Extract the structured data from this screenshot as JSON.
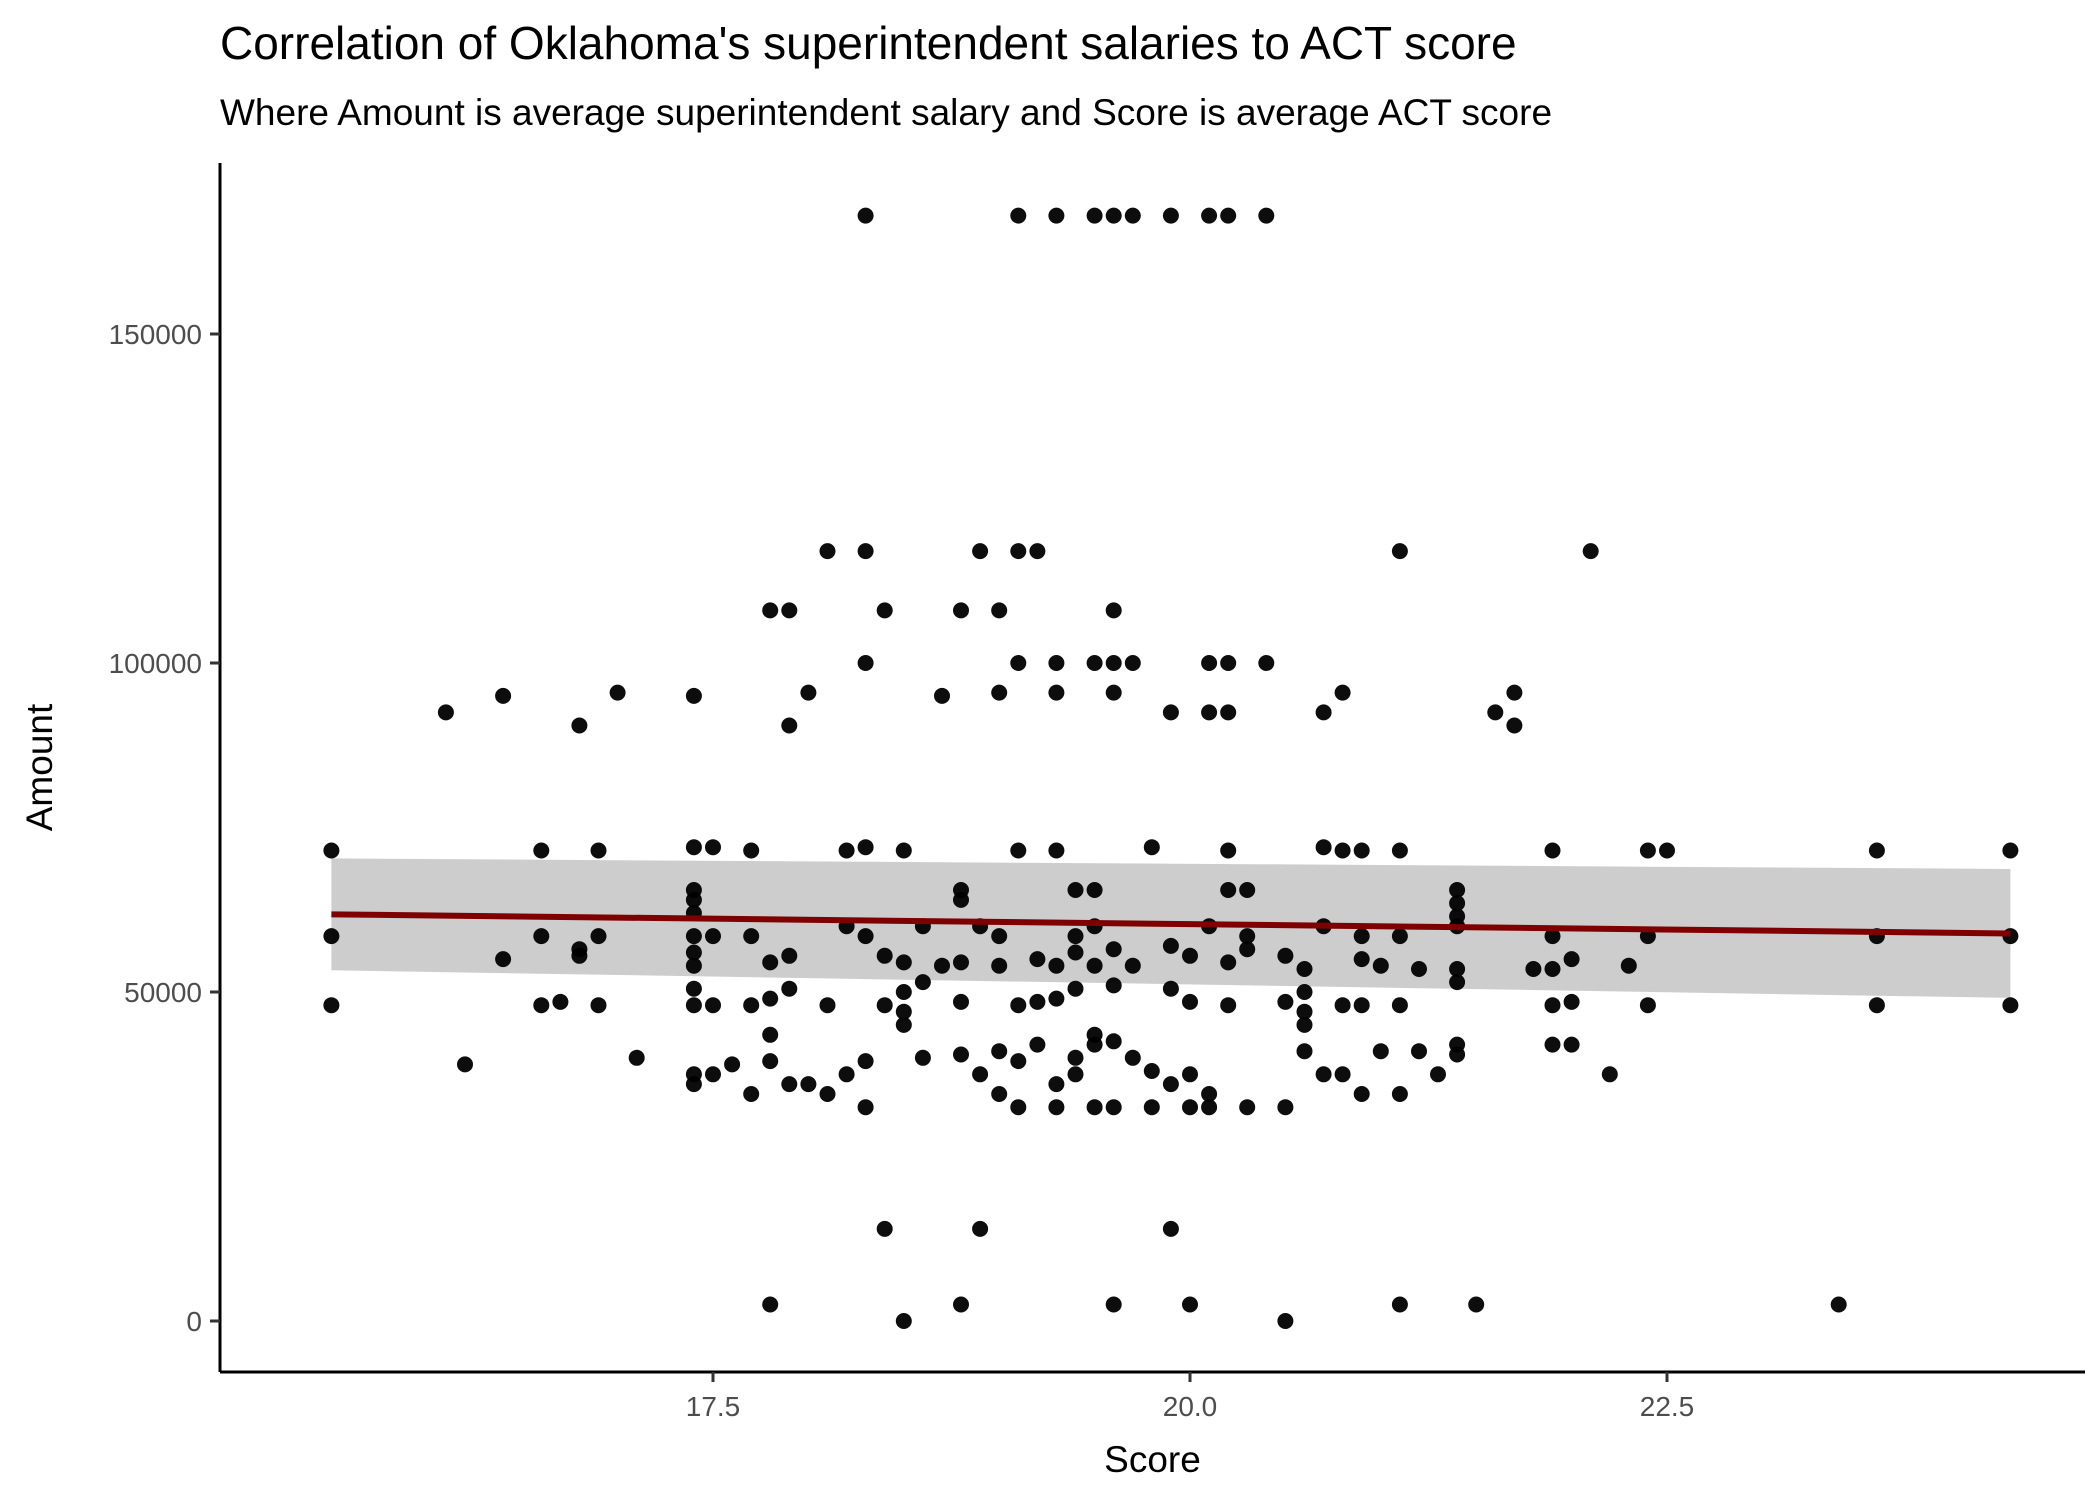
{
  "chart_data": {
    "type": "scatter",
    "title": "Correlation of Oklahoma's superintendent salaries to ACT score",
    "subtitle": "Where Amount is average superintendent salary and Score is average ACT score",
    "xlabel": "Score",
    "ylabel": "Amount",
    "xlim": [
      15.4,
      24.6
    ],
    "ylim": [
      -7000,
      175000
    ],
    "xticks": [
      17.5,
      20.0,
      22.5
    ],
    "xtick_labels": [
      "17.5",
      "20.0",
      "22.5"
    ],
    "yticks": [
      0,
      50000,
      100000,
      150000
    ],
    "ytick_labels": [
      "0",
      "50000",
      "100000",
      "150000"
    ],
    "grid": false,
    "legend": "none",
    "colors": {
      "points": "#000000",
      "fit_line": "#7f0000",
      "confidence_band": "#c8c8c8"
    },
    "trend": {
      "x": [
        15.5,
        24.3
      ],
      "y": [
        61800,
        58900
      ],
      "ci_upper": [
        70300,
        68700
      ],
      "ci_lower": [
        53300,
        49100
      ]
    },
    "points": [
      [
        18.3,
        168000
      ],
      [
        19.1,
        168000
      ],
      [
        19.3,
        168000
      ],
      [
        19.5,
        168000
      ],
      [
        19.6,
        168000
      ],
      [
        19.7,
        168000
      ],
      [
        19.9,
        168000
      ],
      [
        20.1,
        168000
      ],
      [
        20.2,
        168000
      ],
      [
        20.4,
        168000
      ],
      [
        18.1,
        117000
      ],
      [
        18.3,
        117000
      ],
      [
        18.9,
        117000
      ],
      [
        19.1,
        117000
      ],
      [
        19.2,
        117000
      ],
      [
        21.1,
        117000
      ],
      [
        22.1,
        117000
      ],
      [
        17.8,
        108000
      ],
      [
        17.9,
        108000
      ],
      [
        18.4,
        108000
      ],
      [
        18.8,
        108000
      ],
      [
        19.0,
        108000
      ],
      [
        19.6,
        108000
      ],
      [
        18.3,
        100000
      ],
      [
        19.1,
        100000
      ],
      [
        19.3,
        100000
      ],
      [
        19.5,
        100000
      ],
      [
        19.6,
        100000
      ],
      [
        19.7,
        100000
      ],
      [
        20.1,
        100000
      ],
      [
        20.2,
        100000
      ],
      [
        20.4,
        100000
      ],
      [
        16.1,
        92500
      ],
      [
        16.4,
        95000
      ],
      [
        16.8,
        90500
      ],
      [
        17.0,
        95500
      ],
      [
        17.4,
        95000
      ],
      [
        17.9,
        90500
      ],
      [
        18.0,
        95500
      ],
      [
        18.7,
        95000
      ],
      [
        19.0,
        95500
      ],
      [
        19.3,
        95500
      ],
      [
        19.6,
        95500
      ],
      [
        19.9,
        92500
      ],
      [
        20.1,
        92500
      ],
      [
        20.2,
        92500
      ],
      [
        20.7,
        92500
      ],
      [
        20.8,
        95500
      ],
      [
        21.6,
        92500
      ],
      [
        21.7,
        95500
      ],
      [
        21.7,
        90500
      ],
      [
        15.5,
        71500
      ],
      [
        16.6,
        71500
      ],
      [
        16.9,
        71500
      ],
      [
        17.4,
        72000
      ],
      [
        17.5,
        72000
      ],
      [
        17.7,
        71500
      ],
      [
        18.2,
        71500
      ],
      [
        18.3,
        72000
      ],
      [
        18.5,
        71500
      ],
      [
        19.1,
        71500
      ],
      [
        19.3,
        71500
      ],
      [
        19.8,
        72000
      ],
      [
        20.2,
        71500
      ],
      [
        20.7,
        72000
      ],
      [
        20.8,
        71500
      ],
      [
        20.9,
        71500
      ],
      [
        21.1,
        71500
      ],
      [
        21.9,
        71500
      ],
      [
        22.4,
        71500
      ],
      [
        22.5,
        71500
      ],
      [
        23.6,
        71500
      ],
      [
        24.3,
        71500
      ],
      [
        17.4,
        65500
      ],
      [
        17.4,
        64000
      ],
      [
        17.4,
        62000
      ],
      [
        18.8,
        65500
      ],
      [
        18.8,
        64000
      ],
      [
        19.4,
        65500
      ],
      [
        19.5,
        65500
      ],
      [
        20.2,
        65500
      ],
      [
        20.3,
        65500
      ],
      [
        21.4,
        65500
      ],
      [
        21.4,
        63500
      ],
      [
        21.4,
        61500
      ],
      [
        15.5,
        58500
      ],
      [
        16.6,
        58500
      ],
      [
        16.9,
        58500
      ],
      [
        17.4,
        58500
      ],
      [
        17.5,
        58500
      ],
      [
        17.7,
        58500
      ],
      [
        18.2,
        60000
      ],
      [
        18.3,
        58500
      ],
      [
        18.6,
        60000
      ],
      [
        18.9,
        60000
      ],
      [
        19.0,
        58500
      ],
      [
        19.4,
        58500
      ],
      [
        19.5,
        60000
      ],
      [
        19.9,
        57000
      ],
      [
        20.1,
        60000
      ],
      [
        20.3,
        58500
      ],
      [
        20.7,
        60000
      ],
      [
        20.9,
        58500
      ],
      [
        21.1,
        58500
      ],
      [
        21.4,
        60000
      ],
      [
        21.9,
        58500
      ],
      [
        22.4,
        58500
      ],
      [
        23.6,
        58500
      ],
      [
        24.3,
        58500
      ],
      [
        16.4,
        55000
      ],
      [
        16.8,
        56500
      ],
      [
        16.8,
        55500
      ],
      [
        17.4,
        56000
      ],
      [
        17.4,
        54000
      ],
      [
        17.8,
        54500
      ],
      [
        17.9,
        55500
      ],
      [
        18.4,
        55500
      ],
      [
        18.5,
        54500
      ],
      [
        18.7,
        54000
      ],
      [
        18.8,
        54500
      ],
      [
        19.0,
        54000
      ],
      [
        19.2,
        55000
      ],
      [
        19.3,
        54000
      ],
      [
        19.4,
        56000
      ],
      [
        19.5,
        54000
      ],
      [
        19.6,
        56500
      ],
      [
        19.7,
        54000
      ],
      [
        20.0,
        55500
      ],
      [
        20.2,
        54500
      ],
      [
        20.3,
        56500
      ],
      [
        20.5,
        55500
      ],
      [
        20.6,
        53500
      ],
      [
        20.9,
        55000
      ],
      [
        21.0,
        54000
      ],
      [
        21.2,
        53500
      ],
      [
        21.4,
        53500
      ],
      [
        21.8,
        53500
      ],
      [
        21.9,
        53500
      ],
      [
        22.0,
        55000
      ],
      [
        22.3,
        54000
      ],
      [
        15.5,
        48000
      ],
      [
        16.6,
        48000
      ],
      [
        16.7,
        48500
      ],
      [
        16.9,
        48000
      ],
      [
        17.4,
        50500
      ],
      [
        17.4,
        48000
      ],
      [
        17.5,
        48000
      ],
      [
        17.7,
        48000
      ],
      [
        17.8,
        49000
      ],
      [
        17.9,
        50500
      ],
      [
        18.1,
        48000
      ],
      [
        18.4,
        48000
      ],
      [
        18.5,
        50000
      ],
      [
        18.6,
        51500
      ],
      [
        18.8,
        48500
      ],
      [
        19.1,
        48000
      ],
      [
        19.2,
        48500
      ],
      [
        19.3,
        49000
      ],
      [
        19.4,
        50500
      ],
      [
        19.6,
        51000
      ],
      [
        19.9,
        50500
      ],
      [
        20.0,
        48500
      ],
      [
        20.2,
        48000
      ],
      [
        20.5,
        48500
      ],
      [
        20.6,
        50000
      ],
      [
        20.6,
        47000
      ],
      [
        20.8,
        48000
      ],
      [
        20.9,
        48000
      ],
      [
        21.1,
        48000
      ],
      [
        21.4,
        51500
      ],
      [
        21.9,
        48000
      ],
      [
        22.0,
        48500
      ],
      [
        22.4,
        48000
      ],
      [
        23.6,
        48000
      ],
      [
        24.3,
        48000
      ],
      [
        16.2,
        39000
      ],
      [
        17.1,
        40000
      ],
      [
        17.4,
        37500
      ],
      [
        17.4,
        36000
      ],
      [
        17.5,
        37500
      ],
      [
        17.6,
        39000
      ],
      [
        17.7,
        34500
      ],
      [
        17.8,
        43500
      ],
      [
        17.8,
        39500
      ],
      [
        17.9,
        36000
      ],
      [
        18.0,
        36000
      ],
      [
        18.1,
        34500
      ],
      [
        18.2,
        37500
      ],
      [
        18.3,
        39500
      ],
      [
        18.5,
        45000
      ],
      [
        18.5,
        47000
      ],
      [
        18.6,
        40000
      ],
      [
        18.8,
        40500
      ],
      [
        18.9,
        37500
      ],
      [
        19.0,
        41000
      ],
      [
        19.0,
        34500
      ],
      [
        19.1,
        39500
      ],
      [
        19.2,
        42000
      ],
      [
        19.3,
        36000
      ],
      [
        19.4,
        37500
      ],
      [
        19.4,
        40000
      ],
      [
        19.5,
        42000
      ],
      [
        19.5,
        43500
      ],
      [
        19.6,
        42500
      ],
      [
        19.7,
        40000
      ],
      [
        19.8,
        38000
      ],
      [
        19.9,
        36000
      ],
      [
        20.0,
        37500
      ],
      [
        20.1,
        34500
      ],
      [
        20.6,
        45000
      ],
      [
        20.6,
        41000
      ],
      [
        20.7,
        37500
      ],
      [
        20.8,
        37500
      ],
      [
        20.9,
        34500
      ],
      [
        21.0,
        41000
      ],
      [
        21.1,
        34500
      ],
      [
        21.2,
        41000
      ],
      [
        21.3,
        37500
      ],
      [
        21.4,
        40500
      ],
      [
        21.4,
        42000
      ],
      [
        21.9,
        42000
      ],
      [
        22.0,
        42000
      ],
      [
        22.2,
        37500
      ],
      [
        18.3,
        32500
      ],
      [
        19.1,
        32500
      ],
      [
        19.3,
        32500
      ],
      [
        19.5,
        32500
      ],
      [
        19.6,
        32500
      ],
      [
        19.8,
        32500
      ],
      [
        20.0,
        32500
      ],
      [
        20.1,
        32500
      ],
      [
        20.3,
        32500
      ],
      [
        20.5,
        32500
      ],
      [
        18.4,
        14000
      ],
      [
        18.9,
        14000
      ],
      [
        19.9,
        14000
      ],
      [
        17.8,
        2500
      ],
      [
        18.8,
        2500
      ],
      [
        19.6,
        2500
      ],
      [
        20.0,
        2500
      ],
      [
        21.1,
        2500
      ],
      [
        21.5,
        2500
      ],
      [
        23.4,
        2500
      ],
      [
        18.5,
        0
      ],
      [
        20.5,
        0
      ]
    ]
  }
}
